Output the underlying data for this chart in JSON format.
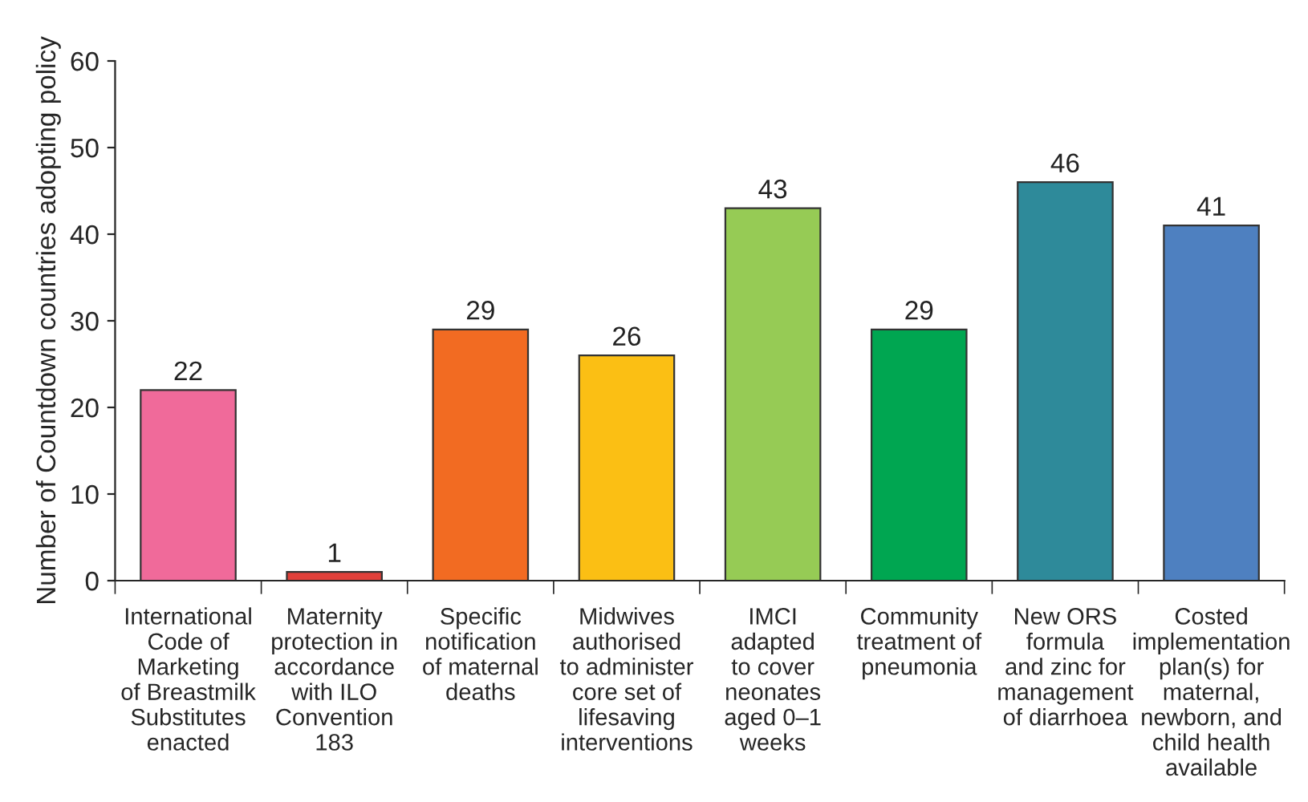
{
  "chart_data": {
    "type": "bar",
    "ylabel": "Number of Countdown countries adopting policy",
    "categories": [
      "International\nCode of\nMarketing\nof Breastmilk\nSubstitutes\nenacted",
      "Maternity\nprotection in\naccordance\nwith ILO\nConvention\n183",
      "Specific\nnotification\nof maternal\ndeaths",
      "Midwives\nauthorised\nto administer\ncore set of\nlifesaving\ninterventions",
      "IMCI\nadapted\nto cover\nneonates\naged 0–1\nweeks",
      "Community\ntreatment of\npneumonia",
      "New ORS\nformula\nand zinc for\nmanagement\nof diarrhoea",
      "Costed\nimplementation\nplan(s) for\nmaternal,\nnewborn, and\nchild health\navailable"
    ],
    "values": [
      22,
      1,
      29,
      26,
      43,
      29,
      46,
      41
    ],
    "colors": [
      "#f06a9a",
      "#e0403a",
      "#f26b22",
      "#fbbf14",
      "#96cb55",
      "#00a651",
      "#2e8a9a",
      "#4e80c0"
    ],
    "ylim": [
      0,
      60
    ],
    "yticks": [
      0,
      10,
      20,
      30,
      40,
      50,
      60
    ],
    "data_labels": true,
    "grid": false,
    "legend": false
  }
}
